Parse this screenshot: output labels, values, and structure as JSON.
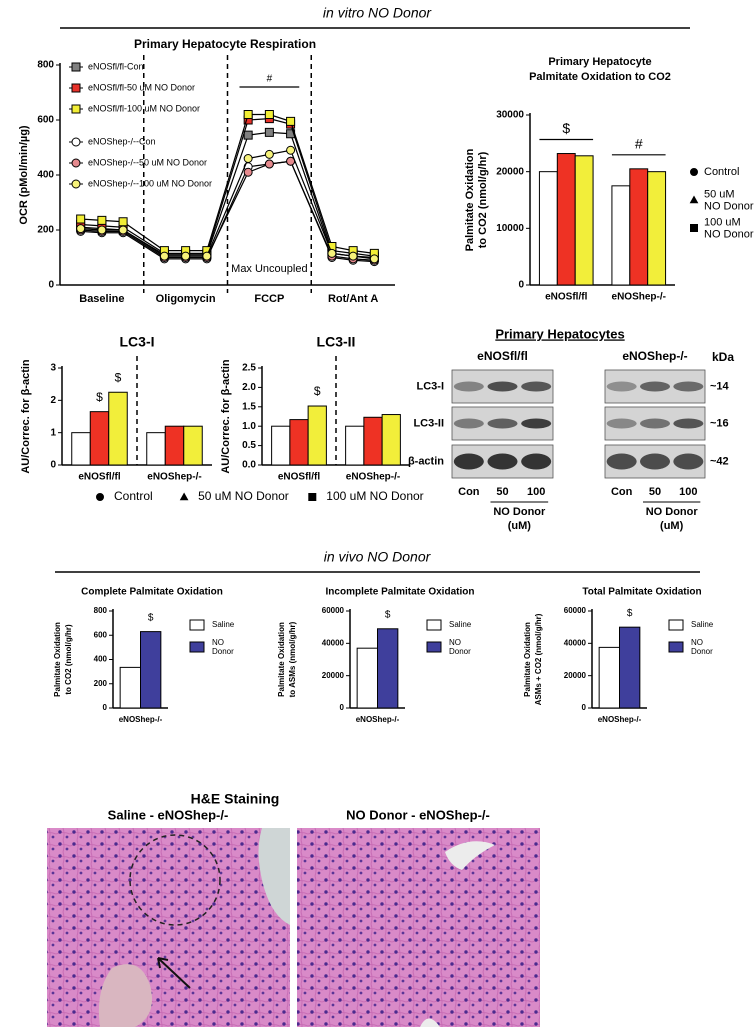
{
  "sections": [
    "in vitro NO Donor",
    "in vivo NO Donor"
  ],
  "chart_data": [
    {
      "type": "line",
      "title": "Primary Hepatocyte Respiration",
      "ylabel": [
        "OCR (pMol/min/µg)"
      ],
      "categories": [
        null,
        null,
        null,
        null,
        null,
        null,
        null,
        null,
        null,
        null,
        null,
        null
      ],
      "groups": [
        "Baseline",
        "Oligomycin",
        "FCCP",
        "Rot/Ant A"
      ],
      "group_annotations": [
        null,
        null,
        "#",
        null
      ],
      "group_notes": [
        null,
        null,
        "Max Uncoupled",
        null
      ],
      "ylim": [
        0,
        800
      ],
      "yticks": [
        0,
        200,
        400,
        600,
        800
      ],
      "legend": "top-left",
      "series": [
        {
          "name": "eNOSfl/fl-Con",
          "color": "#808080",
          "marker": "square",
          "values": [
            210,
            205,
            200,
            110,
            110,
            110,
            545,
            555,
            550,
            115,
            105,
            100
          ]
        },
        {
          "name": "eNOSfl/fl-50 uM NO Donor",
          "color": "#e8322a",
          "marker": "square",
          "values": [
            220,
            215,
            210,
            115,
            115,
            115,
            600,
            605,
            585,
            125,
            115,
            105
          ]
        },
        {
          "name": "eNOSfl/fl-100 uM NO Donor",
          "color": "#f2ee36",
          "marker": "square",
          "values": [
            240,
            235,
            230,
            125,
            125,
            125,
            620,
            620,
            595,
            140,
            125,
            115
          ]
        },
        {
          "name": "eNOShep-/--Con",
          "color": "#ffffff",
          "marker": "circle",
          "values": [
            195,
            190,
            190,
            95,
            95,
            95,
            430,
            440,
            450,
            100,
            90,
            85
          ]
        },
        {
          "name": "eNOShep-/--50 uM NO Donor",
          "color": "#e58a8e",
          "marker": "circle",
          "values": [
            200,
            195,
            195,
            100,
            100,
            100,
            410,
            440,
            450,
            105,
            95,
            90
          ]
        },
        {
          "name": "eNOShep-/--100 uM NO Donor",
          "color": "#f6f27a",
          "marker": "circle",
          "values": [
            205,
            200,
            200,
            105,
            105,
            105,
            460,
            475,
            490,
            115,
            105,
            95
          ]
        }
      ]
    },
    {
      "type": "bar",
      "title": [
        "Primary Hepatocyte",
        "Palmitate Oxidation to CO2"
      ],
      "ylabel": [
        "Palmitate Oxidation",
        "to CO2 (nmol/g/hr)"
      ],
      "categories": [
        "eNOSfl/fl",
        "eNOShep-/-"
      ],
      "category_annotations": [
        "$",
        "#"
      ],
      "ylim": [
        0,
        30000
      ],
      "yticks": [
        0,
        10000,
        20000,
        30000
      ],
      "legend": "right",
      "legend_style": "marker",
      "series": [
        {
          "name": "Control",
          "color": "#ffffff",
          "marker": "circle",
          "values": [
            20000,
            17500
          ]
        },
        {
          "name": "50 uM NO Donor",
          "color": "#ee3224",
          "marker": "triangle",
          "values": [
            23200,
            20500
          ]
        },
        {
          "name": "100 uM NO Donor",
          "color": "#f2ee3a",
          "marker": "square",
          "values": [
            22800,
            20000
          ]
        }
      ]
    },
    {
      "type": "bar",
      "title": "LC3-I",
      "ylabel": [
        "AU/Correc. for β-actin"
      ],
      "categories": [
        "eNOSfl/fl",
        "eNOShep-/-"
      ],
      "divider": true,
      "ylim": [
        0,
        3
      ],
      "yticks": [
        0,
        1,
        2,
        3
      ],
      "legend": "bottom",
      "legend_style": "marker",
      "series": [
        {
          "name": "Control",
          "color": "#ffffff",
          "marker": "circle",
          "values": [
            1,
            1
          ]
        },
        {
          "name": "50 uM NO Donor",
          "color": "#ee3224",
          "marker": "triangle",
          "values": [
            1.65,
            1.2
          ],
          "significance": [
            "$",
            null
          ]
        },
        {
          "name": "100 uM NO Donor",
          "color": "#f2ee3a",
          "marker": "square",
          "values": [
            2.25,
            1.2
          ],
          "significance": [
            "$",
            null
          ]
        }
      ]
    },
    {
      "type": "bar",
      "title": "LC3-II",
      "ylabel": [
        "AU/Correc. for β-actin"
      ],
      "categories": [
        "eNOSfl/fl",
        "eNOShep-/-"
      ],
      "divider": true,
      "ylim": [
        0,
        2.5
      ],
      "yticks": [
        {
          "value": 0,
          "label": "0.0"
        },
        0.5,
        {
          "value": 1,
          "label": "1.0"
        },
        1.5,
        {
          "value": 2,
          "label": "2.0"
        },
        2.5
      ],
      "legend": "none",
      "series": [
        {
          "name": "Control",
          "color": "#ffffff",
          "values": [
            1,
            1
          ]
        },
        {
          "name": "50 uM NO Donor",
          "color": "#ee3224",
          "values": [
            1.17,
            1.23
          ]
        },
        {
          "name": "100 uM NO Donor",
          "color": "#f2ee3a",
          "values": [
            1.52,
            1.3
          ],
          "significance": [
            "$",
            null
          ]
        }
      ]
    },
    {
      "type": "bar",
      "title": "Complete Palmitate Oxidation",
      "ylabel": [
        "Palmitate Oxidation",
        "to CO2 (nmol/g/hr)"
      ],
      "categories": [
        "eNOShep-/-"
      ],
      "ylim": [
        0,
        800
      ],
      "yticks": [
        0,
        200,
        400,
        600,
        800
      ],
      "legend": "right",
      "legend_style": "swatch",
      "series": [
        {
          "name": "Saline",
          "color": "#ffffff",
          "values": [
            335
          ]
        },
        {
          "name": "NO Donor",
          "color": "#3f3f9c",
          "values": [
            630
          ],
          "significance": [
            "$"
          ]
        }
      ]
    },
    {
      "type": "bar",
      "title": "Incomplete Palmitate Oxidation",
      "ylabel": [
        "Palmitate Oxidation",
        "to ASMs (nmol/g/hr)"
      ],
      "categories": [
        "eNOShep-/-"
      ],
      "ylim": [
        0,
        60000
      ],
      "yticks": [
        0,
        20000,
        40000,
        60000
      ],
      "legend": "right",
      "legend_style": "swatch",
      "series": [
        {
          "name": "Saline",
          "color": "#ffffff",
          "values": [
            37000
          ]
        },
        {
          "name": "NO Donor",
          "color": "#3f3f9c",
          "values": [
            49000
          ],
          "significance": [
            "$"
          ]
        }
      ]
    },
    {
      "type": "bar",
      "title": "Total Palmitate Oxidation",
      "ylabel": [
        "Palmitate Oxidation",
        "ASMs + CO2 (nmol/g/hr)"
      ],
      "categories": [
        "eNOShep-/-"
      ],
      "ylim": [
        0,
        60000
      ],
      "yticks": [
        0,
        20000,
        40000,
        60000
      ],
      "legend": "right",
      "legend_style": "swatch",
      "series": [
        {
          "name": "Saline",
          "color": "#ffffff",
          "values": [
            37500
          ]
        },
        {
          "name": "NO Donor",
          "color": "#3f3f9c",
          "values": [
            50000
          ],
          "significance": [
            "$"
          ]
        }
      ]
    }
  ],
  "blot": {
    "title": "Primary Hepatocytes",
    "groups": [
      "eNOSfl/fl",
      "eNOShep-/-"
    ],
    "unit": "kDa",
    "rows": [
      {
        "label": "LC3-I",
        "kda": "~14"
      },
      {
        "label": "LC3-II",
        "kda": "~16"
      },
      {
        "label": "β-actin",
        "kda": "~42"
      }
    ],
    "lanes": [
      "Con",
      "50",
      "100"
    ],
    "treatment": [
      "NO Donor",
      "(uM)"
    ]
  },
  "histology": {
    "title": "H&E Staining",
    "panels": [
      "Saline - eNOShep-/-",
      "NO Donor - eNOShep-/-"
    ]
  }
}
